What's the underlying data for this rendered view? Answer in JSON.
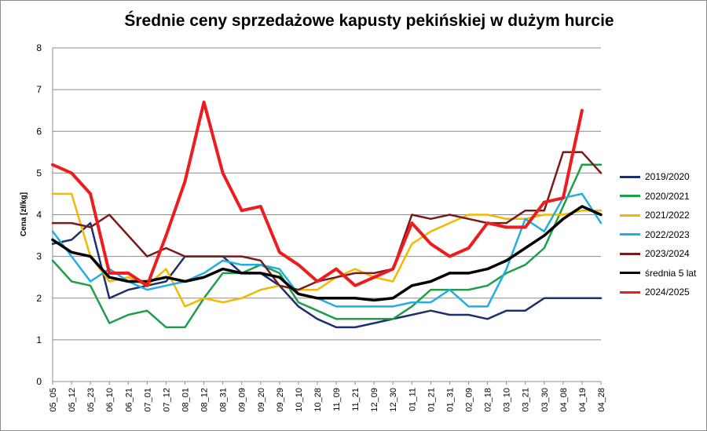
{
  "chart_data": {
    "type": "line",
    "title": "Średnie ceny sprzedażowe kapusty pekińskiej w dużym hurcie",
    "ylabel": "Cena [zł/kg]",
    "xlabel": "",
    "ylim": [
      0,
      8
    ],
    "yticks": [
      "0",
      "1",
      "2",
      "3",
      "4",
      "5",
      "6",
      "7",
      "8"
    ],
    "grid": "horizontal",
    "legend_position": "right",
    "x": [
      "05_05",
      "05_12",
      "05_23",
      "06_10",
      "06_21",
      "07_01",
      "07_12",
      "08_01",
      "08_12",
      "08_31",
      "09_09",
      "09_20",
      "09_29",
      "10_10",
      "10_28",
      "11_09",
      "11_21",
      "12_09",
      "12_30",
      "01_11",
      "01_21",
      "01_31",
      "02_09",
      "02_18",
      "03_10",
      "03_21",
      "03_30",
      "04_08",
      "04_19",
      "04_28"
    ],
    "series": [
      {
        "name": "2019/2020",
        "color": "#1f2f6e",
        "width": 2.5,
        "values": [
          3.3,
          3.4,
          3.8,
          2.0,
          2.2,
          2.3,
          2.4,
          3.0,
          3.0,
          3.0,
          2.6,
          2.6,
          2.3,
          1.8,
          1.5,
          1.3,
          1.3,
          1.4,
          1.5,
          1.6,
          1.7,
          1.6,
          1.6,
          1.5,
          1.7,
          1.7,
          2.0,
          2.0,
          2.0,
          2.0
        ]
      },
      {
        "name": "2020/2021",
        "color": "#1e9e4a",
        "width": 2.5,
        "values": [
          2.9,
          2.4,
          2.3,
          1.4,
          1.6,
          1.7,
          1.3,
          1.3,
          2.0,
          2.6,
          2.6,
          2.8,
          2.6,
          1.9,
          1.7,
          1.5,
          1.5,
          1.5,
          1.5,
          1.8,
          2.2,
          2.2,
          2.2,
          2.3,
          2.6,
          2.8,
          3.2,
          4.2,
          5.2,
          5.2
        ]
      },
      {
        "name": "2021/2022",
        "color": "#f5b800",
        "width": 2.5,
        "values": [
          4.5,
          4.5,
          3.0,
          2.4,
          2.5,
          2.3,
          2.7,
          1.8,
          2.0,
          1.9,
          2.0,
          2.2,
          2.3,
          2.2,
          2.2,
          2.5,
          2.7,
          2.5,
          2.4,
          3.3,
          3.6,
          3.8,
          4.0,
          4.0,
          3.9,
          3.9,
          4.0,
          4.0,
          4.1,
          4.1
        ]
      },
      {
        "name": "2022/2023",
        "color": "#22aee0",
        "width": 2.5,
        "values": [
          3.6,
          3.0,
          2.4,
          2.7,
          2.4,
          2.2,
          2.3,
          2.4,
          2.6,
          2.9,
          2.8,
          2.8,
          2.7,
          2.1,
          2.0,
          1.8,
          1.8,
          1.8,
          1.8,
          1.9,
          1.9,
          2.2,
          1.8,
          1.8,
          2.7,
          3.9,
          3.6,
          4.4,
          4.5,
          3.8
        ]
      },
      {
        "name": "2023/2024",
        "color": "#7a1a1a",
        "width": 2.5,
        "values": [
          3.8,
          3.8,
          3.7,
          4.0,
          3.5,
          3.0,
          3.2,
          3.0,
          3.0,
          3.0,
          3.0,
          2.9,
          2.3,
          2.2,
          2.4,
          2.5,
          2.6,
          2.6,
          2.7,
          4.0,
          3.9,
          4.0,
          3.9,
          3.8,
          3.8,
          4.1,
          4.1,
          5.5,
          5.5,
          5.0
        ]
      },
      {
        "name": "średnia 5 lat",
        "color": "#000000",
        "width": 3.5,
        "values": [
          3.4,
          3.1,
          3.0,
          2.5,
          2.4,
          2.4,
          2.5,
          2.4,
          2.5,
          2.7,
          2.6,
          2.6,
          2.5,
          2.1,
          2.0,
          2.0,
          2.0,
          1.95,
          2.0,
          2.3,
          2.4,
          2.6,
          2.6,
          2.7,
          2.9,
          3.2,
          3.5,
          3.9,
          4.2,
          4.0
        ]
      },
      {
        "name": "2024/2025",
        "color": "#ee1c1c",
        "width": 4.0,
        "values": [
          5.2,
          5.0,
          4.5,
          2.6,
          2.6,
          2.3,
          3.5,
          4.8,
          6.7,
          5.0,
          4.1,
          4.2,
          3.1,
          2.8,
          2.4,
          2.7,
          2.3,
          2.5,
          2.7,
          3.8,
          3.3,
          3.0,
          3.2,
          3.8,
          3.7,
          3.7,
          4.3,
          4.4,
          6.5,
          null
        ]
      }
    ]
  }
}
